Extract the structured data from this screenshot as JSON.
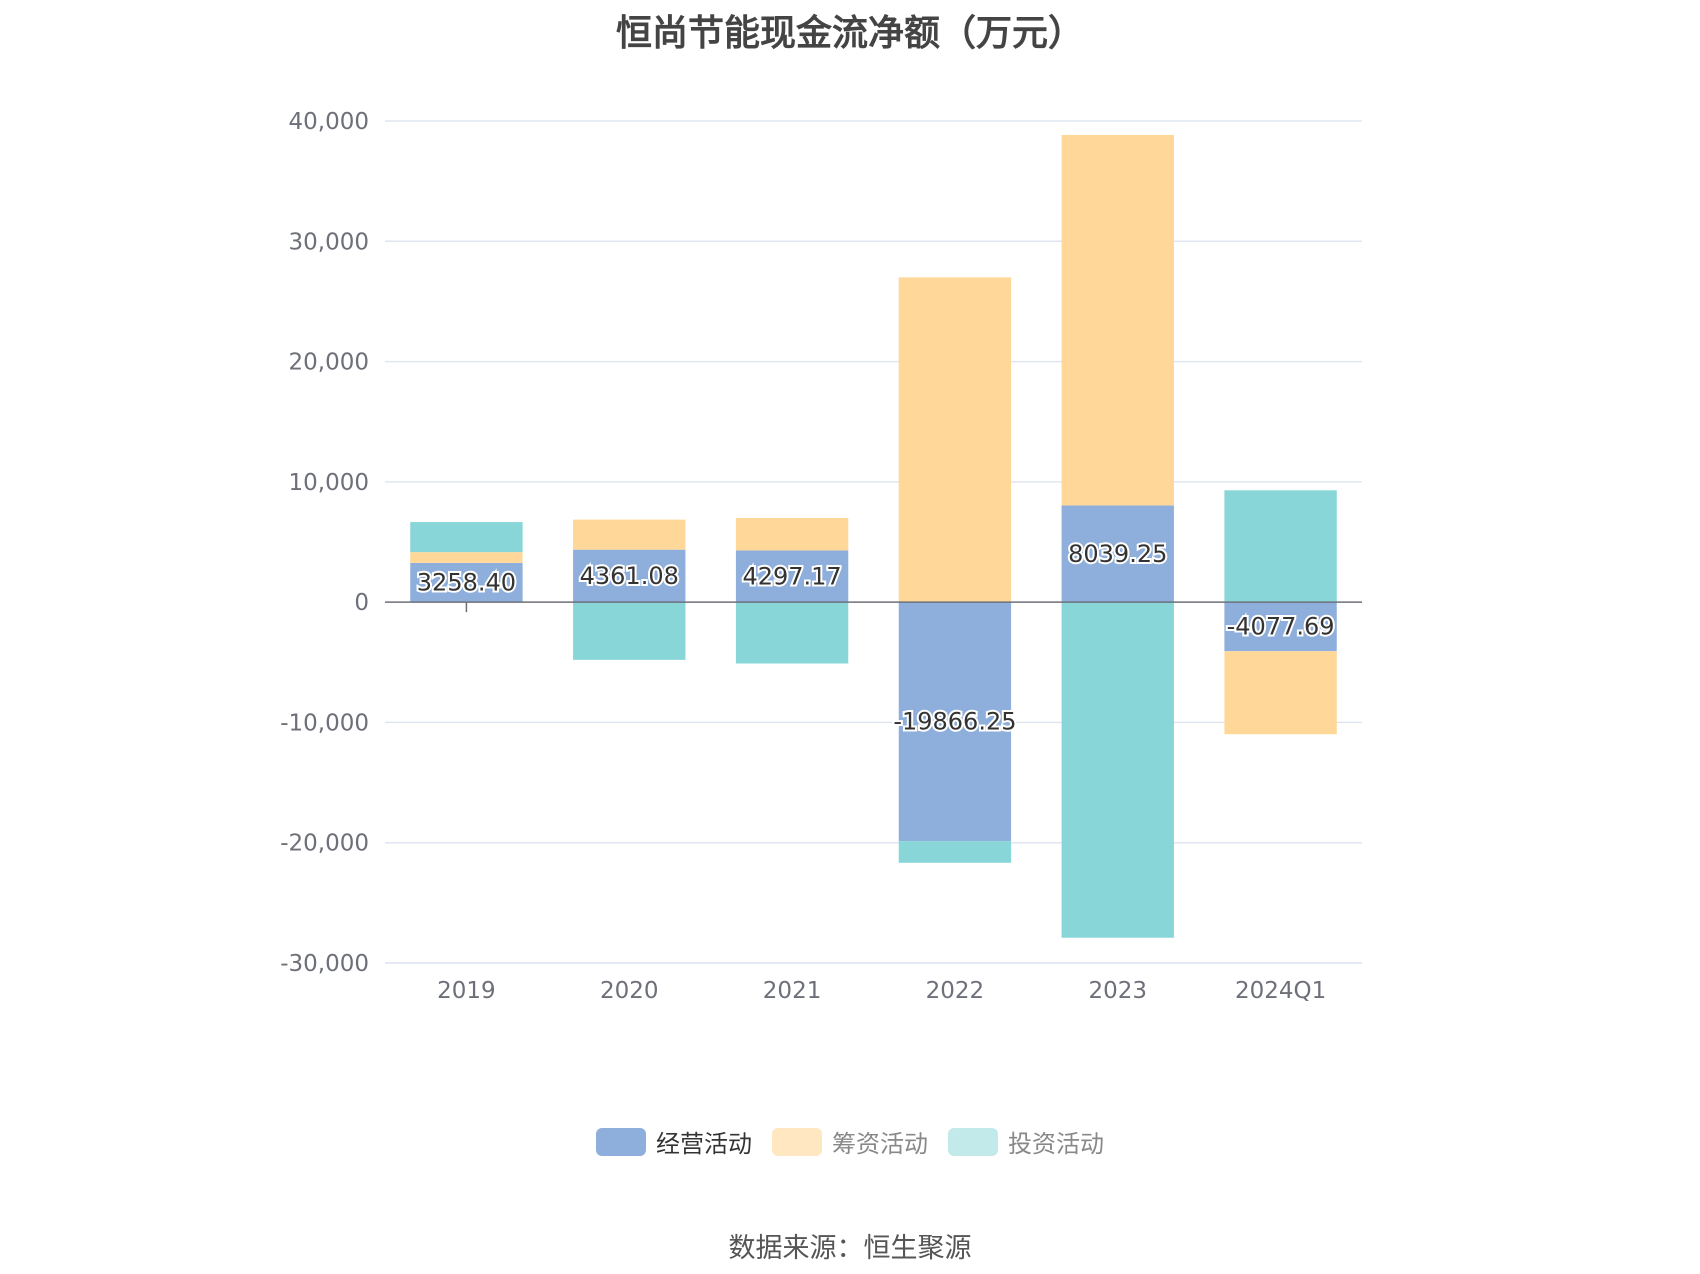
{
  "chart_data": {
    "type": "bar",
    "stacked": true,
    "title": "恒尚节能现金流净额（万元）",
    "categories": [
      "2019",
      "2020",
      "2021",
      "2022",
      "2023",
      "2024Q1"
    ],
    "ylim": [
      -30000,
      40000
    ],
    "yticks": [
      40000,
      30000,
      20000,
      10000,
      0,
      -10000,
      -20000,
      -30000
    ],
    "ytick_labels": [
      "40,000",
      "30,000",
      "20,000",
      "10,000",
      "0",
      "-10,000",
      "-20,000",
      "-30,000"
    ],
    "grid": true,
    "legend_position": "bottom",
    "series": [
      {
        "name": "经营活动",
        "color": "#8eaedb",
        "values": [
          3258.4,
          4361.08,
          4297.17,
          -19866.25,
          8039.25,
          -4077.69
        ],
        "labels": [
          "3258.40",
          "4361.08",
          "4297.17",
          "-19866.25",
          "8039.25",
          "-4077.69"
        ]
      },
      {
        "name": "筹资活动",
        "color": "#ffd899",
        "values": [
          900,
          2500,
          2700,
          27000,
          30800,
          -6900
        ]
      },
      {
        "name": "投资活动",
        "color": "#88d6d8",
        "values": [
          2500,
          -4800,
          -5100,
          -1800,
          -27900,
          9300
        ]
      }
    ]
  },
  "legend_swatch_colors": [
    "#8eaedb",
    "#ffe7c2",
    "#c3eaeb"
  ],
  "source": "数据来源：恒生聚源"
}
